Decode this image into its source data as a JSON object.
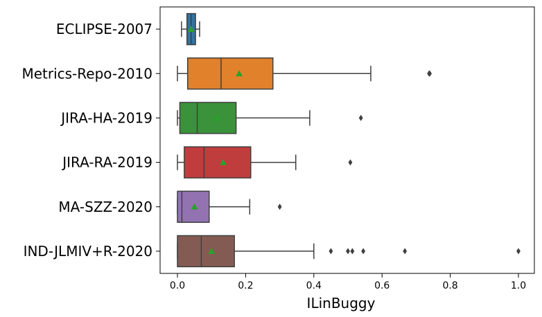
{
  "chart_data": {
    "type": "boxplot",
    "orientation": "horizontal",
    "xlabel": "ILinBuggy",
    "xlim": [
      -0.05,
      1.05
    ],
    "xticks": [
      "0.0",
      "0.2",
      "0.4",
      "0.6",
      "0.8",
      "1.0"
    ],
    "xtick_values": [
      0.0,
      0.2,
      0.4,
      0.6,
      0.8,
      1.0
    ],
    "grid": false,
    "mean_marker": "triangle",
    "mean_color": "#2ca02c",
    "categories": [
      "ECLIPSE-2007",
      "Metrics-Repo-2010",
      "JIRA-HA-2019",
      "JIRA-RA-2019",
      "MA-SZZ-2020",
      "IND-JLMIV+R-2020"
    ],
    "boxes": [
      {
        "name": "ECLIPSE-2007",
        "color": "#3274a1",
        "whisker_low": 0.012,
        "q1": 0.028,
        "median": 0.04,
        "q3": 0.053,
        "whisker_high": 0.065,
        "mean": 0.04,
        "outliers": []
      },
      {
        "name": "Metrics-Repo-2010",
        "color": "#e1812c",
        "whisker_low": 0.0,
        "q1": 0.03,
        "median": 0.128,
        "q3": 0.28,
        "whisker_high": 0.567,
        "mean": 0.181,
        "outliers": [
          0.738,
          0.74
        ]
      },
      {
        "name": "JIRA-HA-2019",
        "color": "#3a923a",
        "whisker_low": 0.0,
        "q1": 0.007,
        "median": 0.058,
        "q3": 0.172,
        "whisker_high": 0.388,
        "mean": 0.115,
        "outliers": [
          0.538
        ]
      },
      {
        "name": "JIRA-RA-2019",
        "color": "#c03d3e",
        "whisker_low": 0.0,
        "q1": 0.02,
        "median": 0.078,
        "q3": 0.215,
        "whisker_high": 0.347,
        "mean": 0.134,
        "outliers": [
          0.507
        ]
      },
      {
        "name": "MA-SZZ-2020",
        "color": "#9372b2",
        "whisker_low": 0.0,
        "q1": 0.0,
        "median": 0.013,
        "q3": 0.093,
        "whisker_high": 0.212,
        "mean": 0.05,
        "outliers": [
          0.3
        ]
      },
      {
        "name": "IND-JLMIV+R-2020",
        "color": "#845b53",
        "whisker_low": 0.0,
        "q1": 0.0,
        "median": 0.07,
        "q3": 0.167,
        "whisker_high": 0.4,
        "mean": 0.1,
        "outliers": [
          0.45,
          0.5,
          0.513,
          0.545,
          0.667,
          1.0
        ]
      }
    ]
  }
}
